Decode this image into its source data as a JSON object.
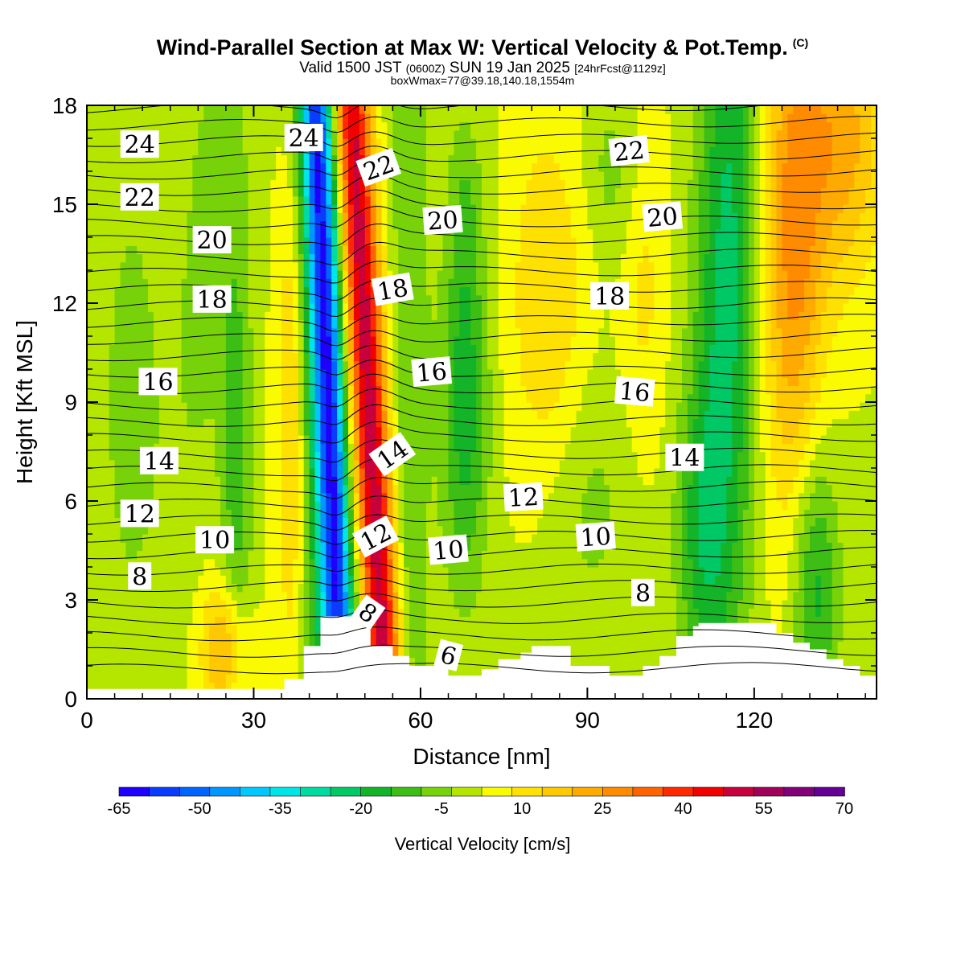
{
  "chart_data": {
    "type": "heatmap",
    "title": "Wind-Parallel Section at Max W: Vertical Velocity & Pot.Temp.",
    "title_mark": "(C)",
    "subtitle_parts": [
      "Valid 1500 JST",
      "(0600Z)",
      "SUN 19 Jan 2025",
      "[24hrFcst@1129z]"
    ],
    "subtitle2": "boxWmax=77@39.18,140.18,1554m",
    "xlabel": "Distance [nm]",
    "ylabel": "Height [Kft MSL]",
    "xlim": [
      0,
      142
    ],
    "ylim": [
      0,
      18
    ],
    "x_ticks": [
      0,
      30,
      60,
      90,
      120
    ],
    "y_ticks": [
      0,
      3,
      6,
      9,
      12,
      15,
      18
    ],
    "x_tick_labels": [
      "0",
      "30",
      "60",
      "90",
      "120"
    ],
    "y_tick_labels": [
      "0",
      "3",
      "6",
      "9",
      "12",
      "15",
      "18"
    ],
    "colorbar": {
      "title": "Vertical Velocity [cm/s]",
      "tick_labels": [
        "-65",
        "-50",
        "-35",
        "-20",
        "-5",
        "10",
        "25",
        "40",
        "55",
        "70"
      ],
      "colors": [
        "#1e00ff",
        "#0a3cff",
        "#0064ff",
        "#0096ff",
        "#00c8ff",
        "#00e6e6",
        "#00dca0",
        "#00c864",
        "#14b428",
        "#3cbe14",
        "#78d20a",
        "#b4e600",
        "#fafa00",
        "#ffe100",
        "#ffc800",
        "#ffaa00",
        "#ff8c00",
        "#ff6400",
        "#ff2800",
        "#f00000",
        "#c8003c",
        "#a0005a",
        "#820078",
        "#640096"
      ]
    },
    "contour_labels": [
      {
        "text": "24",
        "x": 9.5,
        "y": 16.8
      },
      {
        "text": "24",
        "x": 39,
        "y": 17.0
      },
      {
        "text": "22",
        "x": 52.5,
        "y": 16.1,
        "rotate": -20
      },
      {
        "text": "22",
        "x": 9.5,
        "y": 15.2
      },
      {
        "text": "22",
        "x": 97.5,
        "y": 16.6,
        "rotate": -6
      },
      {
        "text": "20",
        "x": 22.5,
        "y": 13.9
      },
      {
        "text": "20",
        "x": 64,
        "y": 14.5,
        "rotate": -4
      },
      {
        "text": "20",
        "x": 103.5,
        "y": 14.6,
        "rotate": -5
      },
      {
        "text": "18",
        "x": 22.5,
        "y": 12.1
      },
      {
        "text": "18",
        "x": 55,
        "y": 12.4,
        "rotate": -10
      },
      {
        "text": "18",
        "x": 94,
        "y": 12.2
      },
      {
        "text": "16",
        "x": 12.8,
        "y": 9.6
      },
      {
        "text": "16",
        "x": 62,
        "y": 9.9,
        "rotate": -5
      },
      {
        "text": "16",
        "x": 98.5,
        "y": 9.3,
        "rotate": 5
      },
      {
        "text": "14",
        "x": 13,
        "y": 7.2
      },
      {
        "text": "14",
        "x": 55,
        "y": 7.4,
        "rotate": -35
      },
      {
        "text": "14",
        "x": 107.5,
        "y": 7.3
      },
      {
        "text": "12",
        "x": 9.5,
        "y": 5.6
      },
      {
        "text": "12",
        "x": 78.5,
        "y": 6.1,
        "rotate": -3
      },
      {
        "text": "12",
        "x": 52,
        "y": 4.9,
        "rotate": -28
      },
      {
        "text": "10",
        "x": 23,
        "y": 4.8
      },
      {
        "text": "10",
        "x": 65,
        "y": 4.5,
        "rotate": -5
      },
      {
        "text": "10",
        "x": 91.5,
        "y": 4.9,
        "rotate": -4
      },
      {
        "text": "8",
        "x": 9.5,
        "y": 3.7
      },
      {
        "text": "8",
        "x": 50.5,
        "y": 2.6,
        "rotate": 35
      },
      {
        "text": "8",
        "x": 100,
        "y": 3.2
      },
      {
        "text": "6",
        "x": 65,
        "y": 1.3,
        "rotate": 15
      }
    ],
    "terrain_kft": [
      [
        0,
        0.3
      ],
      [
        35.5,
        0.3
      ],
      [
        35.5,
        0.6
      ],
      [
        39,
        0.6
      ],
      [
        39,
        1.6
      ],
      [
        42,
        1.6
      ],
      [
        42,
        2.5
      ],
      [
        49.5,
        2.5
      ],
      [
        49.5,
        2.2
      ],
      [
        51,
        2.2
      ],
      [
        51,
        1.6
      ],
      [
        55,
        1.6
      ],
      [
        55,
        1.3
      ],
      [
        58,
        1.3
      ],
      [
        58,
        1.0
      ],
      [
        65,
        1.0
      ],
      [
        65,
        0.7
      ],
      [
        71,
        0.7
      ],
      [
        71,
        0.9
      ],
      [
        74,
        0.9
      ],
      [
        74,
        1.2
      ],
      [
        78,
        1.2
      ],
      [
        78,
        1.4
      ],
      [
        80,
        1.4
      ],
      [
        80,
        1.6
      ],
      [
        87,
        1.6
      ],
      [
        87,
        1.0
      ],
      [
        90,
        1.0
      ],
      [
        90,
        1.0
      ],
      [
        94,
        1.0
      ],
      [
        94,
        0.7
      ],
      [
        100,
        0.7
      ],
      [
        100,
        1.0
      ],
      [
        103,
        1.0
      ],
      [
        103,
        1.3
      ],
      [
        106,
        1.3
      ],
      [
        106,
        1.9
      ],
      [
        109,
        1.9
      ],
      [
        109,
        2.2
      ],
      [
        110,
        2.2
      ],
      [
        110,
        2.3
      ],
      [
        124,
        2.3
      ],
      [
        124,
        2.0
      ],
      [
        127,
        2.0
      ],
      [
        127,
        1.7
      ],
      [
        130,
        1.7
      ],
      [
        130,
        1.5
      ],
      [
        133,
        1.5
      ],
      [
        133,
        1.2
      ],
      [
        136,
        1.2
      ],
      [
        136,
        1.0
      ],
      [
        139,
        1.0
      ],
      [
        139,
        0.7
      ],
      [
        142,
        0.7
      ],
      [
        142,
        0
      ]
    ],
    "theta_levels_kft": [
      0.9,
      1.4,
      1.9,
      2.4,
      2.9,
      3.4,
      3.9,
      4.4,
      4.9,
      5.4,
      5.9,
      6.4,
      6.9,
      7.4,
      7.9,
      8.4,
      8.9,
      9.4,
      9.9,
      10.4,
      10.9,
      11.4,
      11.9,
      12.4,
      12.9,
      13.4,
      13.9,
      14.4,
      14.9,
      15.4,
      15.9,
      16.4,
      16.9,
      17.4,
      17.9
    ],
    "w_features": [
      {
        "x": 44.5,
        "y": 5.5,
        "slope": -0.25,
        "sx": 2.0,
        "sy": 30,
        "w": -50
      },
      {
        "x": 50,
        "y": 10,
        "slope": -0.34,
        "sx": 2.4,
        "sy": 30,
        "w": 62
      },
      {
        "x": 47.5,
        "y": 14,
        "slope": -0.3,
        "sx": 2.2,
        "sy": 30,
        "w": -15
      },
      {
        "x": 41,
        "y": 14,
        "slope": -0.15,
        "sx": 3,
        "sy": 30,
        "w": -18
      },
      {
        "x": 58,
        "y": 12,
        "slope": 0,
        "sx": 2.5,
        "sy": 30,
        "w": -10
      },
      {
        "x": 8,
        "y": 9,
        "slope": 0,
        "sx": 4,
        "sy": 5,
        "w": -8
      },
      {
        "x": 27,
        "y": 6,
        "slope": 0,
        "sx": 2,
        "sy": 6,
        "w": -14
      },
      {
        "x": 22,
        "y": 14,
        "slope": 0.4,
        "sx": 4,
        "sy": 6,
        "w": -8
      },
      {
        "x": 68,
        "y": 9,
        "slope": 0,
        "sx": 3,
        "sy": 4,
        "w": -20
      },
      {
        "x": 68,
        "y": 15,
        "slope": 0,
        "sx": 2,
        "sy": 2,
        "w": -7
      },
      {
        "x": 95,
        "y": 16,
        "slope": 0,
        "sx": 4,
        "sy": 2,
        "w": -8
      },
      {
        "x": 90,
        "y": 6,
        "slope": 0,
        "sx": 6,
        "sy": 3,
        "w": -7
      },
      {
        "x": 115,
        "y": 12,
        "slope": 0.1,
        "sx": 4,
        "sy": 9,
        "w": -25
      },
      {
        "x": 110,
        "y": 5,
        "slope": 0,
        "sx": 3,
        "sy": 3,
        "w": -12
      },
      {
        "x": 131,
        "y": 3.5,
        "slope": 0,
        "sx": 3,
        "sy": 3,
        "w": -20
      },
      {
        "x": 127,
        "y": 14,
        "slope": 0,
        "sx": 4,
        "sy": 6,
        "w": 25
      },
      {
        "x": 136,
        "y": 17,
        "slope": 0,
        "sx": 5,
        "sy": 3,
        "w": 20
      },
      {
        "x": 25,
        "y": 1.5,
        "slope": 0,
        "sx": 3,
        "sy": 1.5,
        "w": 22
      },
      {
        "x": 37,
        "y": 9,
        "slope": 0,
        "sx": 2,
        "sy": 6,
        "w": 15
      },
      {
        "x": 83,
        "y": 12,
        "slope": 0,
        "sx": 5,
        "sy": 4,
        "w": 12
      },
      {
        "x": 100,
        "y": 13,
        "slope": 0,
        "sx": 3,
        "sy": 4,
        "w": 8
      }
    ]
  }
}
